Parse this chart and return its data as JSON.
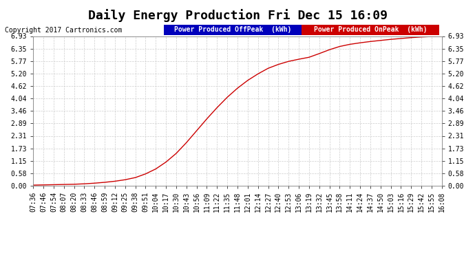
{
  "title": "Daily Energy Production Fri Dec 15 16:09",
  "copyright_text": "Copyright 2017 Cartronics.com",
  "legend_offpeak_label": "Power Produced OffPeak  (kWh)",
  "legend_onpeak_label": "Power Produced OnPeak  (kWh)",
  "offpeak_color": "#0000bb",
  "onpeak_color": "#cc0000",
  "line_color": "#cc0000",
  "background_color": "#ffffff",
  "plot_bg_color": "#ffffff",
  "grid_color": "#cccccc",
  "yticks": [
    0.0,
    0.58,
    1.15,
    1.73,
    2.31,
    2.89,
    3.46,
    4.04,
    4.62,
    5.2,
    5.77,
    6.35,
    6.93
  ],
  "x_labels": [
    "07:36",
    "07:46",
    "07:54",
    "08:07",
    "08:20",
    "08:33",
    "08:46",
    "08:59",
    "09:12",
    "09:25",
    "09:38",
    "09:51",
    "10:04",
    "10:17",
    "10:30",
    "10:43",
    "10:56",
    "11:09",
    "11:22",
    "11:35",
    "11:48",
    "12:01",
    "12:14",
    "12:27",
    "12:40",
    "12:53",
    "13:06",
    "13:19",
    "13:32",
    "13:45",
    "13:58",
    "14:11",
    "14:24",
    "14:37",
    "14:50",
    "15:03",
    "15:16",
    "15:29",
    "15:42",
    "15:55",
    "16:08"
  ],
  "y_values": [
    0.03,
    0.04,
    0.05,
    0.06,
    0.07,
    0.09,
    0.12,
    0.16,
    0.21,
    0.28,
    0.38,
    0.55,
    0.78,
    1.1,
    1.5,
    2.0,
    2.55,
    3.1,
    3.62,
    4.1,
    4.52,
    4.88,
    5.18,
    5.44,
    5.62,
    5.76,
    5.86,
    5.95,
    6.12,
    6.3,
    6.45,
    6.55,
    6.62,
    6.68,
    6.73,
    6.78,
    6.82,
    6.86,
    6.89,
    6.91,
    6.93
  ],
  "ylim": [
    0.0,
    6.93
  ],
  "title_fontsize": 13,
  "tick_fontsize": 7,
  "copyright_fontsize": 7,
  "legend_fontsize": 7
}
